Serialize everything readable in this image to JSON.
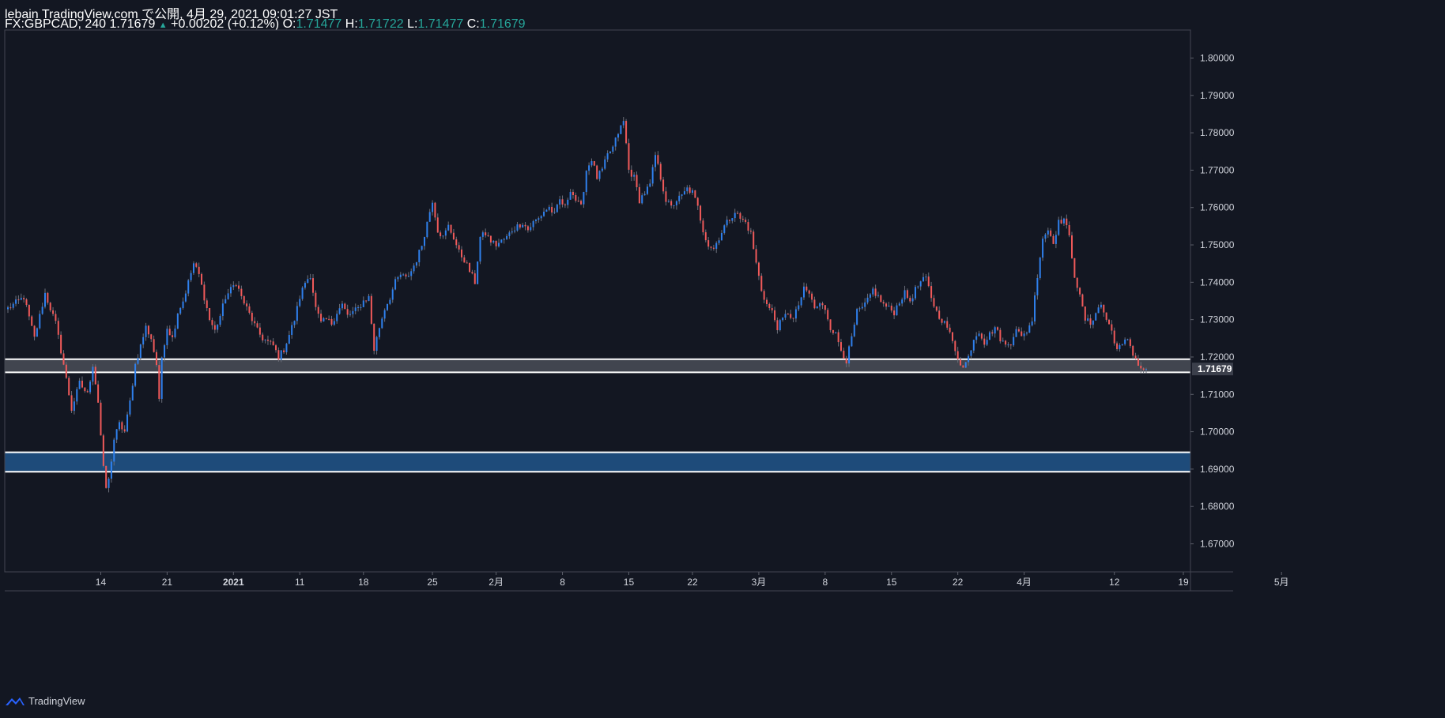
{
  "header": {
    "publisher": "lebain TradingView.com で公開, 4月 29, 2021 09:01:27 JST",
    "symbol": "FX:GBPCAD, 240",
    "last_price": "1.71679",
    "arrow": "▲",
    "change": "+0.00202 (+0.12%)",
    "open_label": "O:",
    "open": "1.71477",
    "high_label": "H:",
    "high": "1.71722",
    "low_label": "L:",
    "low": "1.71477",
    "close_label": "C:",
    "close": "1.71679"
  },
  "footer": {
    "brand": "TradingView",
    "logo_icon": "tradingview-logo-icon"
  },
  "colors": {
    "background": "#131722",
    "up": "#2f80ed",
    "down": "#f05a5a",
    "grid": "#1e222d",
    "axis_text": "#d1d4dc",
    "zone_gray": "#4a4d57",
    "zone_blue": "#1e4b7a",
    "zone_border": "#ffffff",
    "price_tag_bg": "#3b3f4b"
  },
  "chart_data": {
    "type": "candlestick",
    "title": "",
    "xlabel": "",
    "ylabel": "",
    "ylim": [
      1.6625,
      1.8075
    ],
    "y_ticks": [
      "1.67000",
      "1.68000",
      "1.69000",
      "1.70000",
      "1.71000",
      "1.72000",
      "1.73000",
      "1.74000",
      "1.75000",
      "1.76000",
      "1.77000",
      "1.78000",
      "1.79000",
      "1.80000"
    ],
    "x_ticks": [
      "14",
      "21",
      "2021",
      "11",
      "18",
      "25",
      "2月",
      "8",
      "15",
      "22",
      "3月",
      "8",
      "15",
      "22",
      "4月",
      "12",
      "19",
      "5月"
    ],
    "x_tick_bold": [
      "2021"
    ],
    "current_price_label": "1.71679",
    "current_price": 1.71679,
    "zones": [
      {
        "name": "resistance-support-gray",
        "top": 1.7194,
        "bottom": 1.7159
      },
      {
        "name": "support-blue",
        "top": 1.6945,
        "bottom": 1.6893
      }
    ],
    "close_path": [
      [
        0,
        1.733
      ],
      [
        6,
        1.736
      ],
      [
        10,
        1.725
      ],
      [
        14,
        1.737
      ],
      [
        18,
        1.729
      ],
      [
        21,
        1.718
      ],
      [
        24,
        1.706
      ],
      [
        27,
        1.713
      ],
      [
        30,
        1.71
      ],
      [
        32,
        1.718
      ],
      [
        34,
        1.708
      ],
      [
        36,
        1.69
      ],
      [
        37,
        1.685
      ],
      [
        38,
        1.687
      ],
      [
        40,
        1.698
      ],
      [
        42,
        1.702
      ],
      [
        44,
        1.7
      ],
      [
        46,
        1.708
      ],
      [
        48,
        1.718
      ],
      [
        50,
        1.723
      ],
      [
        52,
        1.728
      ],
      [
        54,
        1.725
      ],
      [
        56,
        1.718
      ],
      [
        57,
        1.708
      ],
      [
        58,
        1.72
      ],
      [
        60,
        1.728
      ],
      [
        62,
        1.725
      ],
      [
        64,
        1.732
      ],
      [
        66,
        1.735
      ],
      [
        68,
        1.74
      ],
      [
        70,
        1.745
      ],
      [
        72,
        1.742
      ],
      [
        74,
        1.736
      ],
      [
        76,
        1.73
      ],
      [
        78,
        1.727
      ],
      [
        80,
        1.731
      ],
      [
        82,
        1.736
      ],
      [
        84,
        1.738
      ],
      [
        86,
        1.74
      ],
      [
        88,
        1.736
      ],
      [
        90,
        1.733
      ],
      [
        92,
        1.73
      ],
      [
        94,
        1.727
      ],
      [
        96,
        1.725
      ],
      [
        98,
        1.724
      ],
      [
        100,
        1.723
      ],
      [
        102,
        1.72
      ],
      [
        104,
        1.722
      ],
      [
        106,
        1.726
      ],
      [
        108,
        1.73
      ],
      [
        110,
        1.736
      ],
      [
        112,
        1.74
      ],
      [
        114,
        1.742
      ],
      [
        116,
        1.733
      ],
      [
        118,
        1.729
      ],
      [
        120,
        1.73
      ],
      [
        122,
        1.729
      ],
      [
        124,
        1.732
      ],
      [
        126,
        1.734
      ],
      [
        128,
        1.731
      ],
      [
        130,
        1.732
      ],
      [
        132,
        1.733
      ],
      [
        134,
        1.735
      ],
      [
        136,
        1.736
      ],
      [
        138,
        1.722
      ],
      [
        140,
        1.728
      ],
      [
        142,
        1.733
      ],
      [
        144,
        1.736
      ],
      [
        146,
        1.74
      ],
      [
        148,
        1.742
      ],
      [
        150,
        1.741
      ],
      [
        152,
        1.743
      ],
      [
        154,
        1.746
      ],
      [
        156,
        1.75
      ],
      [
        158,
        1.756
      ],
      [
        160,
        1.762
      ],
      [
        162,
        1.754
      ],
      [
        164,
        1.752
      ],
      [
        166,
        1.755
      ],
      [
        168,
        1.752
      ],
      [
        170,
        1.748
      ],
      [
        172,
        1.746
      ],
      [
        174,
        1.743
      ],
      [
        176,
        1.74
      ],
      [
        178,
        1.752
      ],
      [
        180,
        1.753
      ],
      [
        182,
        1.751
      ],
      [
        184,
        1.75
      ],
      [
        186,
        1.751
      ],
      [
        188,
        1.752
      ],
      [
        190,
        1.754
      ],
      [
        192,
        1.755
      ],
      [
        194,
        1.756
      ],
      [
        196,
        1.754
      ],
      [
        198,
        1.756
      ],
      [
        200,
        1.757
      ],
      [
        202,
        1.759
      ],
      [
        204,
        1.76
      ],
      [
        206,
        1.758
      ],
      [
        208,
        1.762
      ],
      [
        210,
        1.76
      ],
      [
        212,
        1.765
      ],
      [
        214,
        1.762
      ],
      [
        216,
        1.76
      ],
      [
        218,
        1.77
      ],
      [
        220,
        1.773
      ],
      [
        222,
        1.768
      ],
      [
        224,
        1.77
      ],
      [
        226,
        1.774
      ],
      [
        228,
        1.776
      ],
      [
        230,
        1.78
      ],
      [
        232,
        1.783
      ],
      [
        233,
        1.777
      ],
      [
        234,
        1.77
      ],
      [
        236,
        1.768
      ],
      [
        238,
        1.762
      ],
      [
        240,
        1.764
      ],
      [
        242,
        1.766
      ],
      [
        244,
        1.774
      ],
      [
        246,
        1.768
      ],
      [
        248,
        1.762
      ],
      [
        250,
        1.76
      ],
      [
        252,
        1.762
      ],
      [
        254,
        1.763
      ],
      [
        256,
        1.765
      ],
      [
        258,
        1.764
      ],
      [
        260,
        1.76
      ],
      [
        262,
        1.754
      ],
      [
        264,
        1.75
      ],
      [
        266,
        1.749
      ],
      [
        268,
        1.752
      ],
      [
        270,
        1.755
      ],
      [
        272,
        1.757
      ],
      [
        274,
        1.759
      ],
      [
        276,
        1.757
      ],
      [
        278,
        1.756
      ],
      [
        280,
        1.753
      ],
      [
        282,
        1.745
      ],
      [
        284,
        1.738
      ],
      [
        286,
        1.734
      ],
      [
        288,
        1.732
      ],
      [
        290,
        1.728
      ],
      [
        292,
        1.73
      ],
      [
        294,
        1.732
      ],
      [
        296,
        1.73
      ],
      [
        298,
        1.734
      ],
      [
        300,
        1.738
      ],
      [
        302,
        1.737
      ],
      [
        304,
        1.733
      ],
      [
        306,
        1.734
      ],
      [
        308,
        1.733
      ],
      [
        310,
        1.728
      ],
      [
        312,
        1.726
      ],
      [
        314,
        1.722
      ],
      [
        316,
        1.719
      ],
      [
        318,
        1.725
      ],
      [
        320,
        1.732
      ],
      [
        322,
        1.733
      ],
      [
        324,
        1.735
      ],
      [
        326,
        1.738
      ],
      [
        328,
        1.736
      ],
      [
        330,
        1.734
      ],
      [
        332,
        1.733
      ],
      [
        334,
        1.732
      ],
      [
        336,
        1.735
      ],
      [
        338,
        1.737
      ],
      [
        340,
        1.735
      ],
      [
        342,
        1.738
      ],
      [
        344,
        1.74
      ],
      [
        346,
        1.741
      ],
      [
        348,
        1.736
      ],
      [
        350,
        1.732
      ],
      [
        352,
        1.73
      ],
      [
        354,
        1.728
      ],
      [
        356,
        1.724
      ],
      [
        358,
        1.72
      ],
      [
        360,
        1.717
      ],
      [
        362,
        1.72
      ],
      [
        364,
        1.725
      ],
      [
        366,
        1.727
      ],
      [
        368,
        1.724
      ],
      [
        370,
        1.726
      ],
      [
        372,
        1.728
      ],
      [
        374,
        1.725
      ],
      [
        376,
        1.723
      ],
      [
        378,
        1.724
      ],
      [
        380,
        1.728
      ],
      [
        382,
        1.725
      ],
      [
        384,
        1.727
      ],
      [
        386,
        1.73
      ],
      [
        388,
        1.742
      ],
      [
        390,
        1.752
      ],
      [
        392,
        1.754
      ],
      [
        394,
        1.751
      ],
      [
        396,
        1.756
      ],
      [
        398,
        1.757
      ],
      [
        400,
        1.752
      ],
      [
        402,
        1.742
      ],
      [
        404,
        1.736
      ],
      [
        406,
        1.73
      ],
      [
        408,
        1.729
      ],
      [
        410,
        1.732
      ],
      [
        412,
        1.734
      ],
      [
        414,
        1.73
      ],
      [
        416,
        1.727
      ],
      [
        418,
        1.722
      ],
      [
        420,
        1.723
      ],
      [
        422,
        1.725
      ],
      [
        424,
        1.721
      ],
      [
        426,
        1.718
      ],
      [
        428,
        1.716
      ],
      [
        429,
        1.7168
      ]
    ],
    "n_bars": 430
  }
}
